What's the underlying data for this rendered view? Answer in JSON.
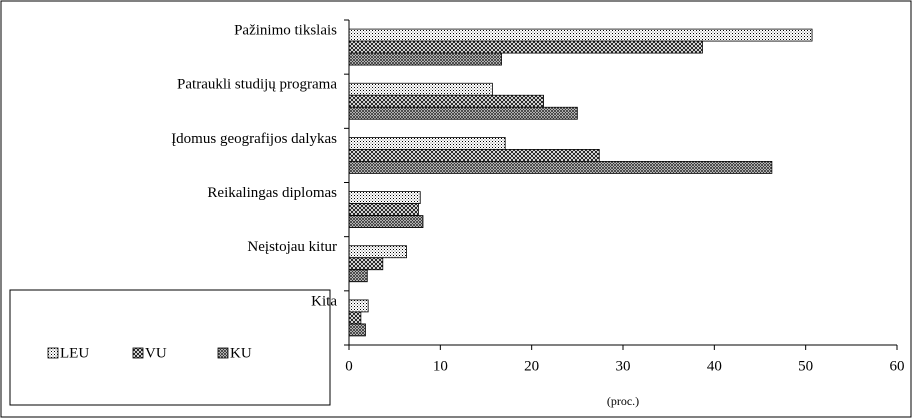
{
  "chart_data": {
    "type": "bar",
    "orientation": "horizontal",
    "x_label": "(proc.)",
    "categories": [
      "Pažinimo tikslais",
      "Patraukli studijų programa",
      "Įdomus geografijos dalykas",
      "Reikalingas diplomas",
      "Neįstojau kitur",
      "Kita"
    ],
    "series": [
      {
        "name": "LEU",
        "values": [
          50.7,
          15.7,
          17.1,
          7.8,
          6.3,
          2.1
        ]
      },
      {
        "name": "VU",
        "values": [
          38.7,
          21.3,
          27.4,
          7.6,
          3.7,
          1.3
        ]
      },
      {
        "name": "KU",
        "values": [
          16.7,
          25.0,
          46.3,
          8.1,
          2.0,
          1.8
        ]
      }
    ],
    "xlim": [
      0,
      60
    ],
    "xticks": [
      0,
      10,
      20,
      30,
      40,
      50,
      60
    ]
  }
}
